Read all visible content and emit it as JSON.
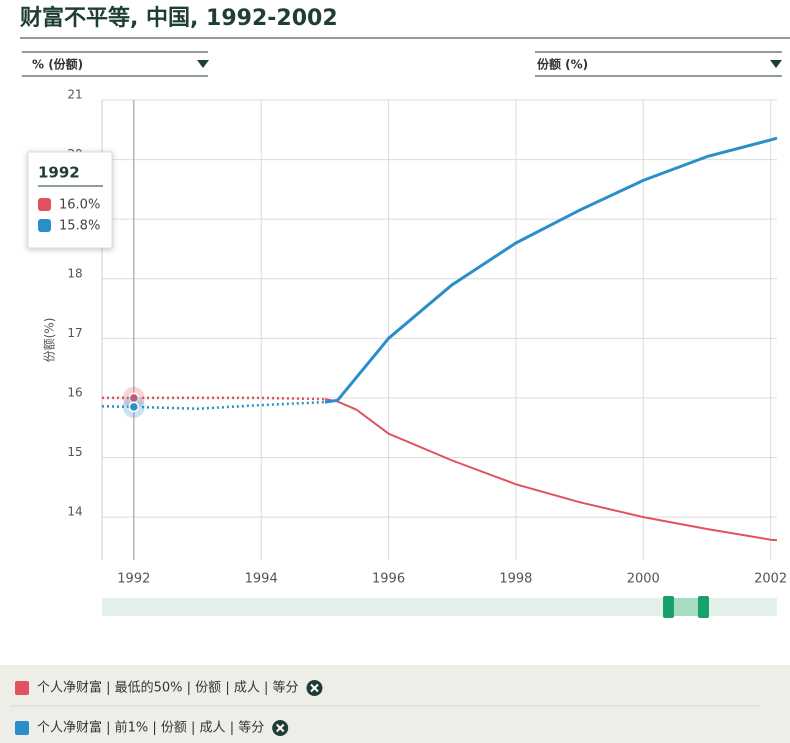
{
  "chart_data": {
    "type": "line",
    "title": "财富不平等, 中国, 1992-2002",
    "selector_left": "% (份额)",
    "selector_right": "份额 (%)",
    "y_label": "份额(%)",
    "x": [
      1991.5,
      1992,
      1993,
      1994,
      1995,
      1995.2,
      1995.5,
      1996,
      1997,
      1998,
      1999,
      2000,
      2001,
      2002,
      2002.1
    ],
    "dotted_until": 1995,
    "series": [
      {
        "name": "个人净财富 | 最低的50% | 份额 | 成人 | 等分",
        "color": "#e0525e",
        "values": [
          16.0,
          16.0,
          16.0,
          16.0,
          15.98,
          15.94,
          15.8,
          15.4,
          14.95,
          14.55,
          14.25,
          14.0,
          13.8,
          13.62,
          13.61
        ]
      },
      {
        "name": "个人净财富 | 前1% | 份额 | 成人 | 等分",
        "color": "#2a8fc9",
        "values": [
          15.86,
          15.85,
          15.82,
          15.88,
          15.93,
          15.96,
          16.35,
          17.0,
          17.9,
          18.6,
          19.15,
          19.65,
          20.05,
          20.33,
          20.36
        ]
      }
    ],
    "xlim": [
      1991.5,
      2002.1
    ],
    "ylim": [
      13.28,
      21
    ],
    "xticks": [
      1992,
      1994,
      1996,
      1998,
      2000,
      2002
    ],
    "yticks": [
      14,
      15,
      16,
      17,
      18,
      19,
      20,
      21
    ],
    "grid": true,
    "tooltip": {
      "x": {
        "value": 1992,
        "label": "1992"
      },
      "items": [
        "16.0%",
        "15.8%"
      ]
    }
  }
}
